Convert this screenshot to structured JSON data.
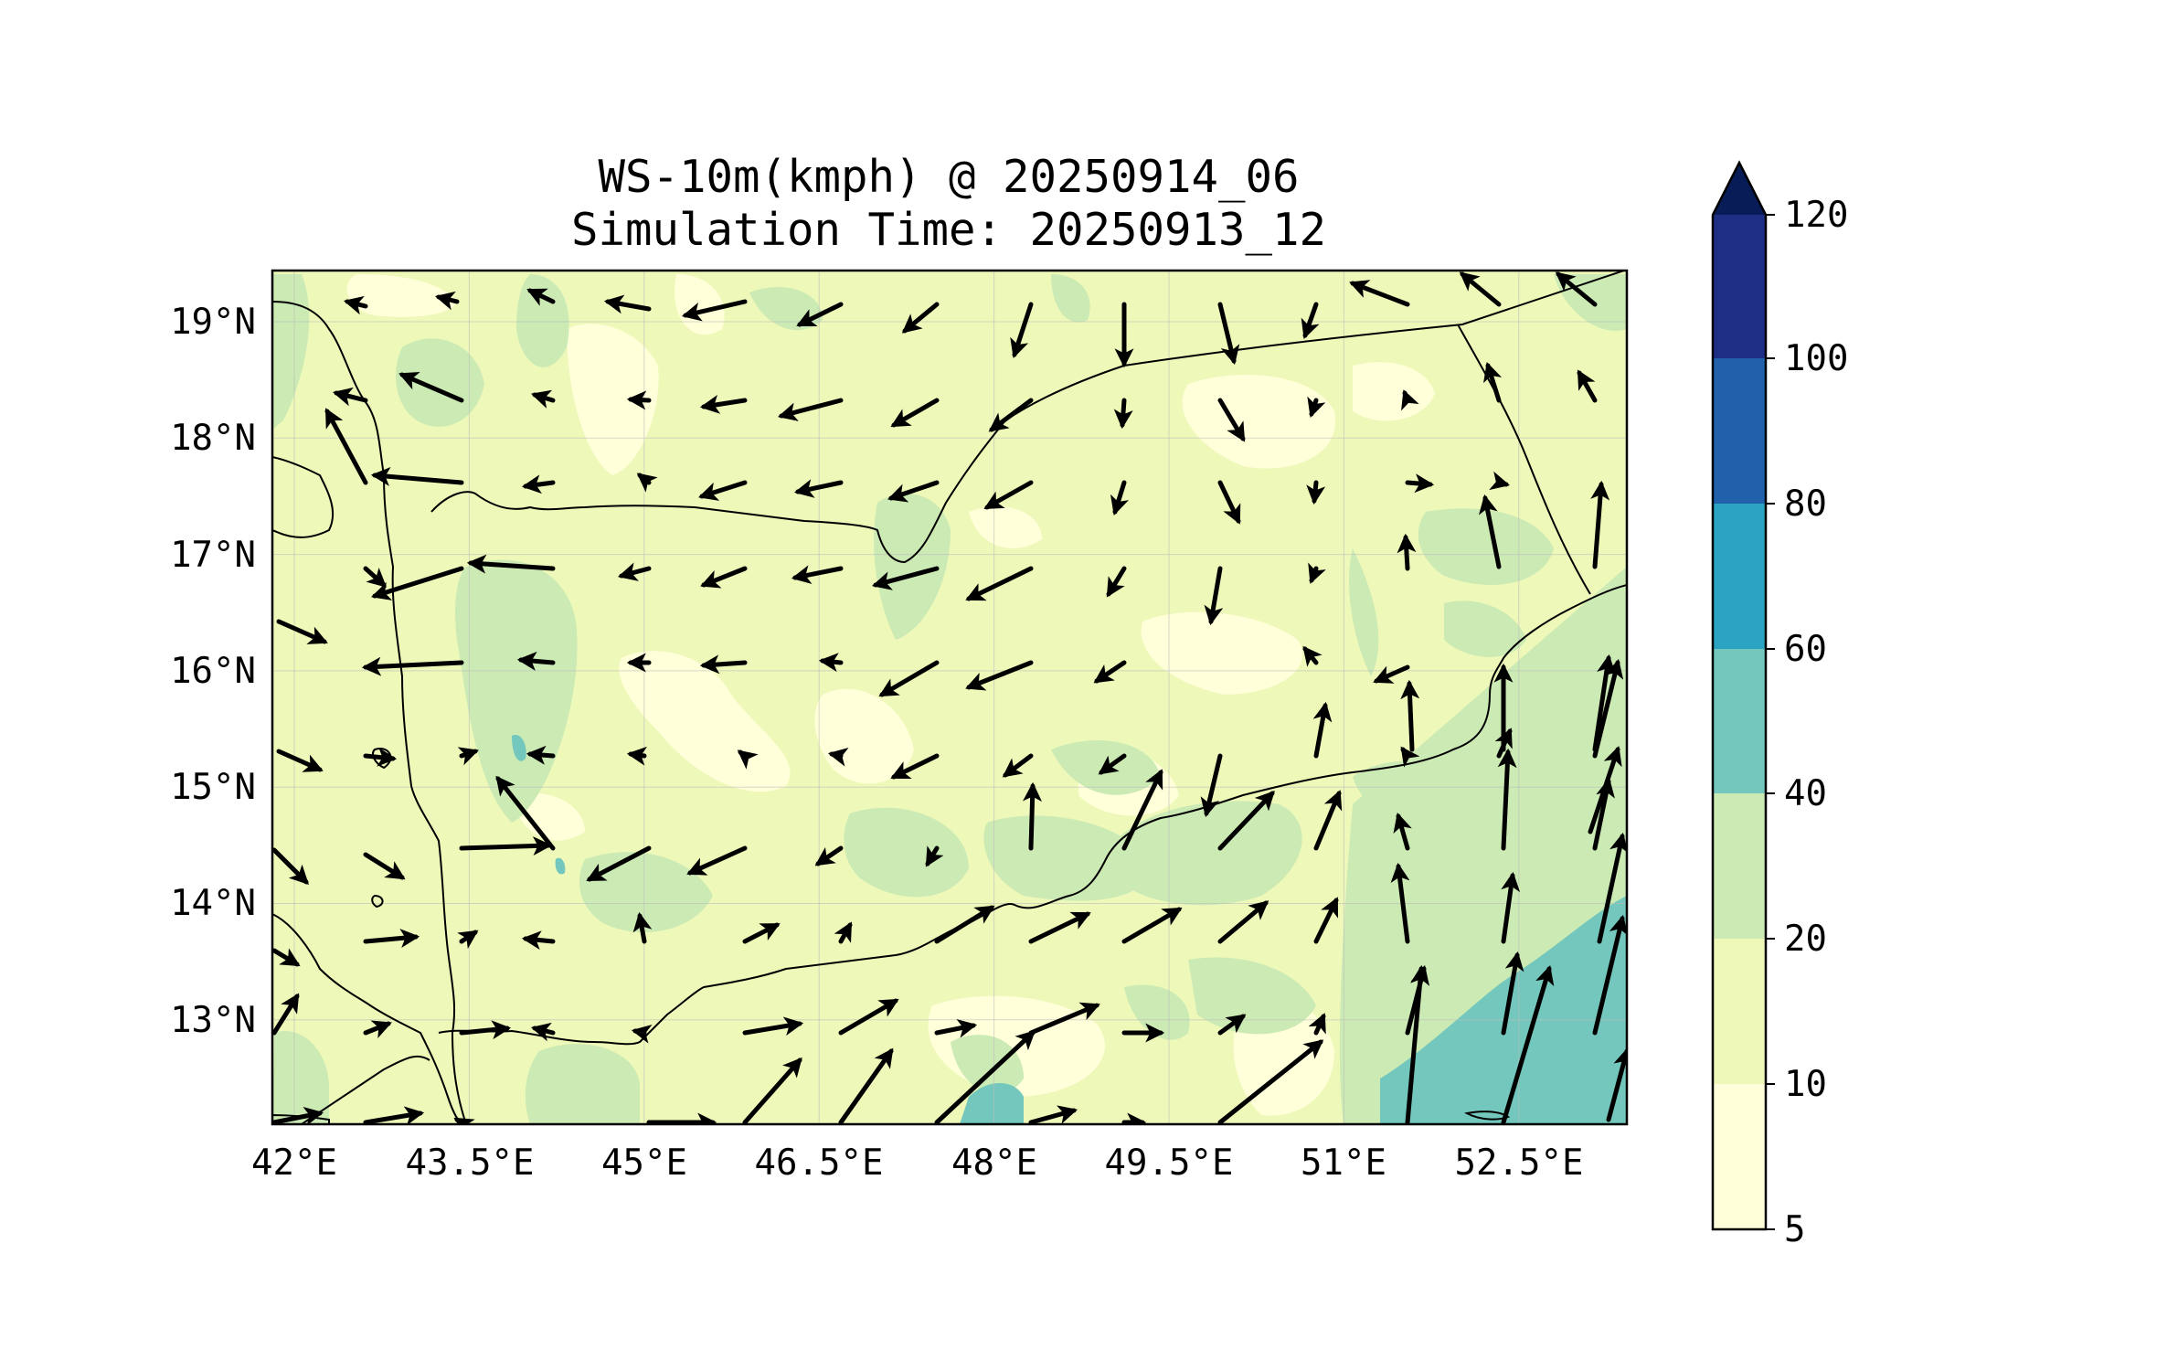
{
  "title": {
    "line1": "WS-10m(kmph) @ 20250914_06",
    "line2": "Simulation Time: 20250913_12"
  },
  "map": {
    "lon_range": [
      41.8,
      53.6
    ],
    "lat_range": [
      12.1,
      19.45
    ],
    "x_ticks": [
      {
        "lon": 42.0,
        "label": "42°E"
      },
      {
        "lon": 43.5,
        "label": "43.5°E"
      },
      {
        "lon": 45.0,
        "label": "45°E"
      },
      {
        "lon": 46.5,
        "label": "46.5°E"
      },
      {
        "lon": 48.0,
        "label": "48°E"
      },
      {
        "lon": 49.5,
        "label": "49.5°E"
      },
      {
        "lon": 51.0,
        "label": "51°E"
      },
      {
        "lon": 52.5,
        "label": "52.5°E"
      }
    ],
    "y_ticks": [
      {
        "lat": 19,
        "label": "19°N"
      },
      {
        "lat": 18,
        "label": "18°N"
      },
      {
        "lat": 17,
        "label": "17°N"
      },
      {
        "lat": 16,
        "label": "16°N"
      },
      {
        "lat": 15,
        "label": "15°N"
      },
      {
        "lat": 14,
        "label": "14°N"
      },
      {
        "lat": 13,
        "label": "13°N"
      }
    ],
    "gridlines": true,
    "colors": {
      "bin_5_10": "#ffffd9",
      "bin_10_20": "#eef8b9",
      "bin_20_40": "#cbeab4",
      "bin_40_60": "#73c7bc",
      "bin_60_80": "#2ba4c3",
      "bin_80_100": "#2161ac",
      "bin_100_120": "#1d2e84",
      "extend_max": "#081d58"
    }
  },
  "colorbar": {
    "levels": [
      "5",
      "10",
      "20",
      "40",
      "60",
      "80",
      "100",
      "120"
    ],
    "extend": "max"
  }
}
